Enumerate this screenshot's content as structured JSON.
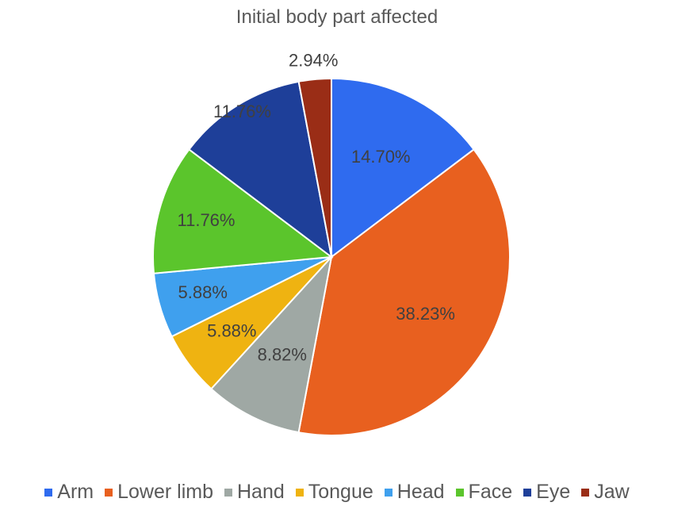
{
  "chart_data": {
    "type": "pie",
    "title": "Initial body part affected",
    "categories": [
      "Arm",
      "Lower limb",
      "Hand",
      "Tongue",
      "Head",
      "Face",
      "Eye",
      "Jaw"
    ],
    "values": [
      14.7,
      38.23,
      8.82,
      5.88,
      5.88,
      11.76,
      11.76,
      2.94
    ],
    "labels": [
      "14.70%",
      "38.23%",
      "8.82%",
      "5.88%",
      "5.88%",
      "11.76%",
      "11.76%",
      "2.94%"
    ],
    "colors": [
      "#2F6BEF",
      "#E8601F",
      "#9FA8A4",
      "#EFB311",
      "#3FA0EE",
      "#5BC52C",
      "#1E3F99",
      "#9A2D16"
    ],
    "legend_position": "bottom"
  }
}
